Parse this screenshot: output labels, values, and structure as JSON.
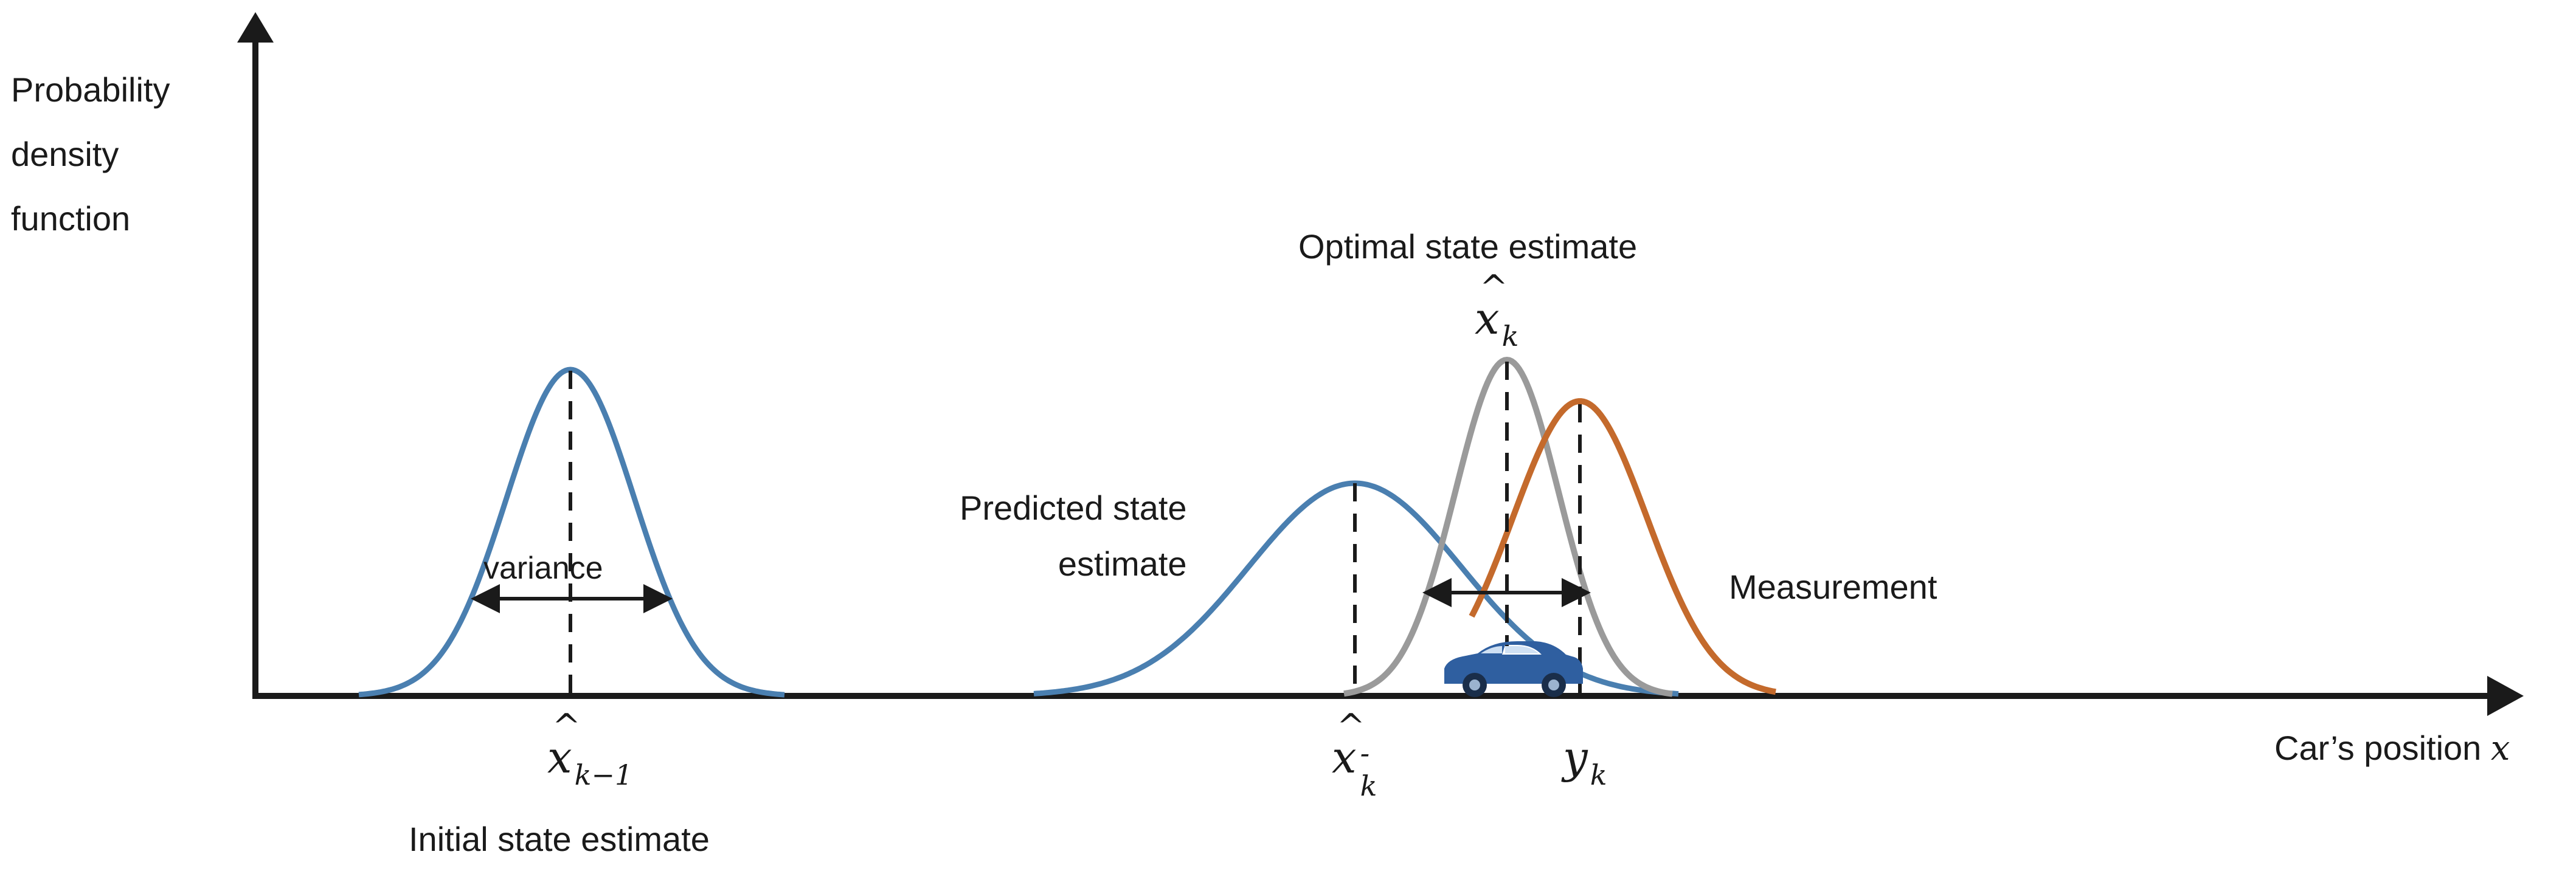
{
  "axes": {
    "y_label_lines": [
      "Probability",
      "density",
      "function"
    ],
    "x_label": "Car’s position",
    "x_label_var": "x"
  },
  "curves": {
    "initial": {
      "color": "#4a7fb0",
      "variance_label": "variance",
      "symbol": "x",
      "subscript": "k−1",
      "caption": "Initial state estimate"
    },
    "predicted": {
      "color": "#4a7fb0",
      "caption_lines": [
        "Predicted state",
        "estimate"
      ],
      "symbol": "x",
      "superscript": "-",
      "subscript": "k"
    },
    "optimal": {
      "color": "#9a9a9a",
      "caption": "Optimal state estimate",
      "symbol": "x",
      "subscript": "k"
    },
    "measurement": {
      "color": "#c46a2c",
      "caption": "Measurement",
      "symbol": "y",
      "subscript": "k"
    }
  },
  "car": {
    "color": "#2f5fa0",
    "icon": "car-icon"
  }
}
